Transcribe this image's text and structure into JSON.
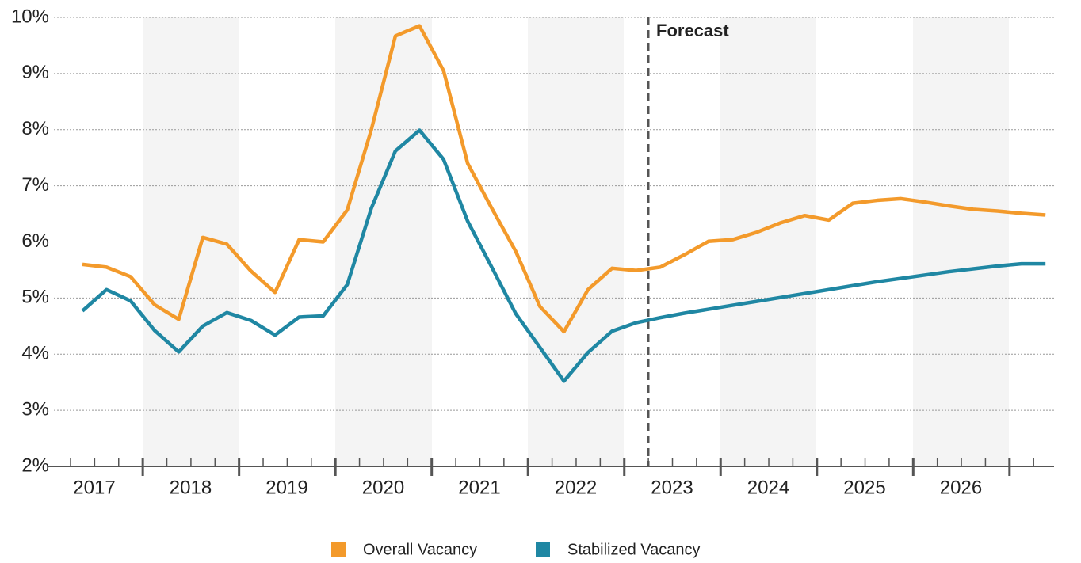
{
  "chart_data": {
    "type": "line",
    "categories": [
      null,
      null,
      null,
      null,
      null,
      null,
      null,
      null,
      null,
      null,
      null,
      null,
      null,
      null,
      null,
      null,
      null,
      null,
      null,
      null,
      null,
      null,
      null,
      null,
      null,
      null,
      null,
      null,
      null,
      null,
      null,
      null,
      null,
      null,
      null,
      null,
      null,
      null,
      null,
      null,
      null
    ],
    "x_group_labels": [
      "2017",
      "2018",
      "2019",
      "2020",
      "2021",
      "2022",
      "2023",
      "2024",
      "2025",
      "2026"
    ],
    "series": [
      {
        "name": "Overall Vacancy",
        "color": "#f39a2b",
        "values": [
          5.6,
          5.55,
          5.38,
          4.88,
          4.62,
          6.08,
          5.96,
          5.48,
          5.1,
          6.04,
          6.0,
          6.57,
          8.0,
          9.67,
          9.85,
          9.05,
          7.4,
          6.6,
          5.83,
          4.85,
          4.4,
          5.15,
          5.53,
          5.49,
          5.55,
          5.77,
          6.01,
          6.04,
          6.17,
          6.34,
          6.47,
          6.39,
          6.69,
          6.74,
          6.77,
          6.71,
          6.64,
          6.58,
          6.55,
          6.51,
          6.48
        ]
      },
      {
        "name": "Stabilized Vacancy",
        "color": "#1f87a3",
        "values": [
          4.77,
          5.15,
          4.95,
          4.42,
          4.04,
          4.5,
          4.74,
          4.6,
          4.34,
          4.66,
          4.68,
          5.24,
          6.6,
          7.62,
          7.99,
          7.47,
          6.37,
          5.55,
          4.72,
          4.12,
          3.52,
          4.03,
          4.41,
          4.56,
          4.65,
          4.73,
          4.8,
          4.87,
          4.94,
          5.01,
          5.08,
          5.15,
          5.22,
          5.29,
          5.35,
          5.41,
          5.47,
          5.52,
          5.57,
          5.61,
          5.61
        ]
      }
    ],
    "ylim": [
      2,
      10
    ],
    "yticks": [
      {
        "value": 2,
        "label": "2%"
      },
      {
        "value": 3,
        "label": "3%"
      },
      {
        "value": 4,
        "label": "4%"
      },
      {
        "value": 5,
        "label": "5%"
      },
      {
        "value": 6,
        "label": "6%"
      },
      {
        "value": 7,
        "label": "7%"
      },
      {
        "value": 8,
        "label": "8%"
      },
      {
        "value": 9,
        "label": "9%"
      },
      {
        "value": 10,
        "label": "10%"
      }
    ],
    "grid": true,
    "annotation": "Forecast",
    "legend": "bottom"
  }
}
